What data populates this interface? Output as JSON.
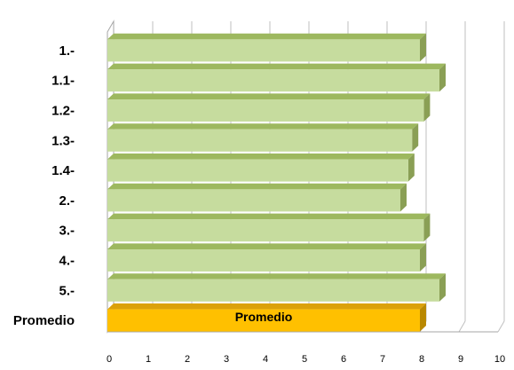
{
  "chart_data": {
    "type": "bar",
    "orientation": "horizontal",
    "categories": [
      "1.-",
      "1.1-",
      "1.2-",
      "1.3-",
      "1.4-",
      "2.-",
      "3.-",
      "4.-",
      "5.-",
      "Promedio"
    ],
    "values": [
      8.0,
      8.5,
      8.1,
      7.8,
      7.7,
      7.5,
      8.1,
      8.0,
      8.5,
      8.0
    ],
    "highlight": {
      "category": "Promedio",
      "label": "Promedio"
    },
    "xlim": [
      0,
      10
    ],
    "xticks": [
      "0",
      "1",
      "2",
      "3",
      "4",
      "5",
      "6",
      "7",
      "8",
      "9",
      "10"
    ],
    "grid": "vertical",
    "style": "3d",
    "colors": {
      "bar_face": "#c6dc9e",
      "bar_top": "#9db85f",
      "bar_side": "#8a9f55",
      "highlight_face": "#ffc000",
      "highlight_top": "#dba10a",
      "highlight_side": "#b98800",
      "grid": "#bfbfbf",
      "wall_edge": "#a6a6a6"
    }
  }
}
